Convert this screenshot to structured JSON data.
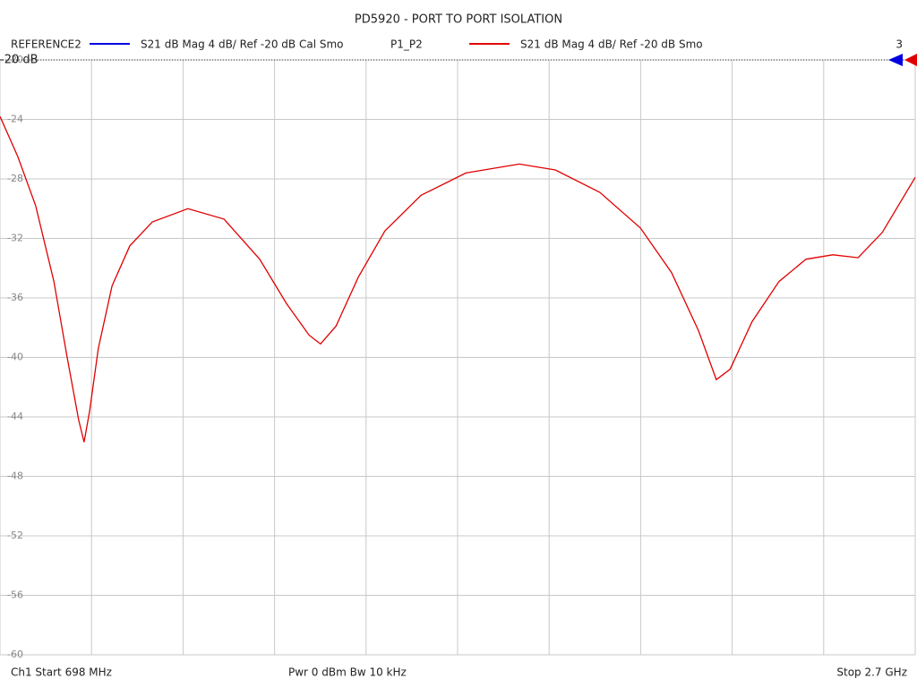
{
  "chart_data": {
    "type": "line",
    "title": "PD5920 - PORT TO PORT ISOLATION",
    "reference_traces": [
      {
        "name": "REFERENCE2",
        "color": "#0000e0",
        "text": "S21  dB Mag  4 dB/ Ref -20 dB  Cal Smo"
      }
    ],
    "series": [
      {
        "name": "P1_P2",
        "color": "#e00000",
        "text": "S21  dB Mag  4 dB/ Ref -20 dB  Smo",
        "x": [
          698,
          737,
          776,
          816,
          845,
          870,
          882,
          894,
          913,
          943,
          982,
          1031,
          1109,
          1188,
          1266,
          1325,
          1374,
          1399,
          1433,
          1482,
          1540,
          1619,
          1717,
          1834,
          1913,
          2010,
          2099,
          2167,
          2226,
          2265,
          2295,
          2343,
          2402,
          2461,
          2520,
          2575,
          2628,
          2700
        ],
        "values": [
          -23.8,
          -26.5,
          -29.8,
          -34.9,
          -40.0,
          -44.2,
          -45.7,
          -43.6,
          -39.4,
          -35.2,
          -32.5,
          -30.9,
          -30.0,
          -30.7,
          -33.4,
          -36.4,
          -38.5,
          -39.1,
          -37.9,
          -34.6,
          -31.5,
          -29.1,
          -27.6,
          -27.0,
          -27.4,
          -28.9,
          -31.3,
          -34.3,
          -38.2,
          -41.5,
          -40.8,
          -37.6,
          -34.9,
          -33.4,
          -33.1,
          -33.3,
          -31.6,
          -27.9
        ]
      }
    ],
    "trace_number": "3",
    "reference_level": -20,
    "reference_label": "-20 dB",
    "xlim": [
      698,
      2700
    ],
    "xgrid_divisions": 10,
    "ylim": [
      -60,
      -20
    ],
    "yticks": [
      -20,
      -24,
      -28,
      -32,
      -36,
      -40,
      -44,
      -48,
      -52,
      -56,
      -60
    ],
    "grid": true,
    "footer": {
      "start": "Ch1  Start  698 MHz",
      "settings": "Pwr  0 dBm  Bw  10 kHz",
      "stop": "Stop  2.7 GHz"
    }
  }
}
